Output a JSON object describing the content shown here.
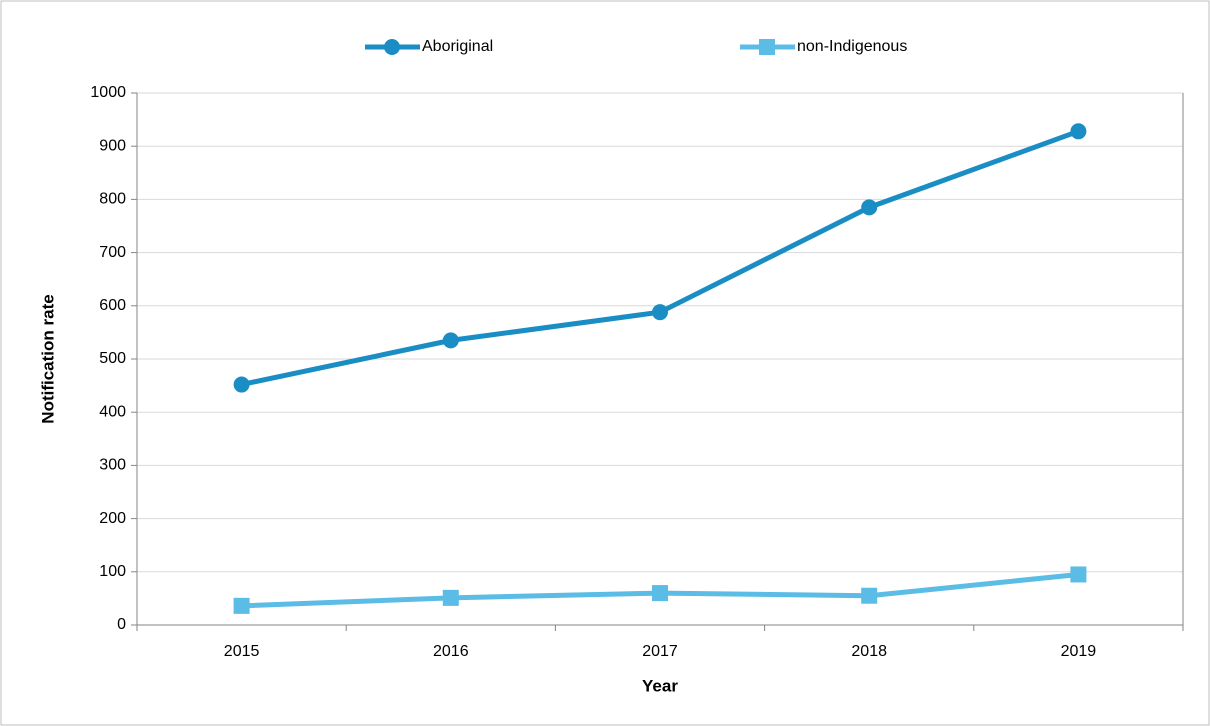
{
  "chart_data": {
    "type": "line",
    "categories": [
      "2015",
      "2016",
      "2017",
      "2018",
      "2019"
    ],
    "series": [
      {
        "name": "Aboriginal",
        "color": "#1a8dc5",
        "marker": "circle",
        "values": [
          452,
          535,
          588,
          785,
          928
        ]
      },
      {
        "name": "non-Indigenous",
        "color": "#5bbce5",
        "marker": "square",
        "values": [
          36,
          51,
          60,
          55,
          95
        ]
      }
    ],
    "ylim": [
      0,
      1000
    ],
    "yticks": [
      0,
      100,
      200,
      300,
      400,
      500,
      600,
      700,
      800,
      900,
      1000
    ],
    "ylabel": "Notification rate",
    "xlabel": "Year",
    "grid": true,
    "legend": "top"
  }
}
